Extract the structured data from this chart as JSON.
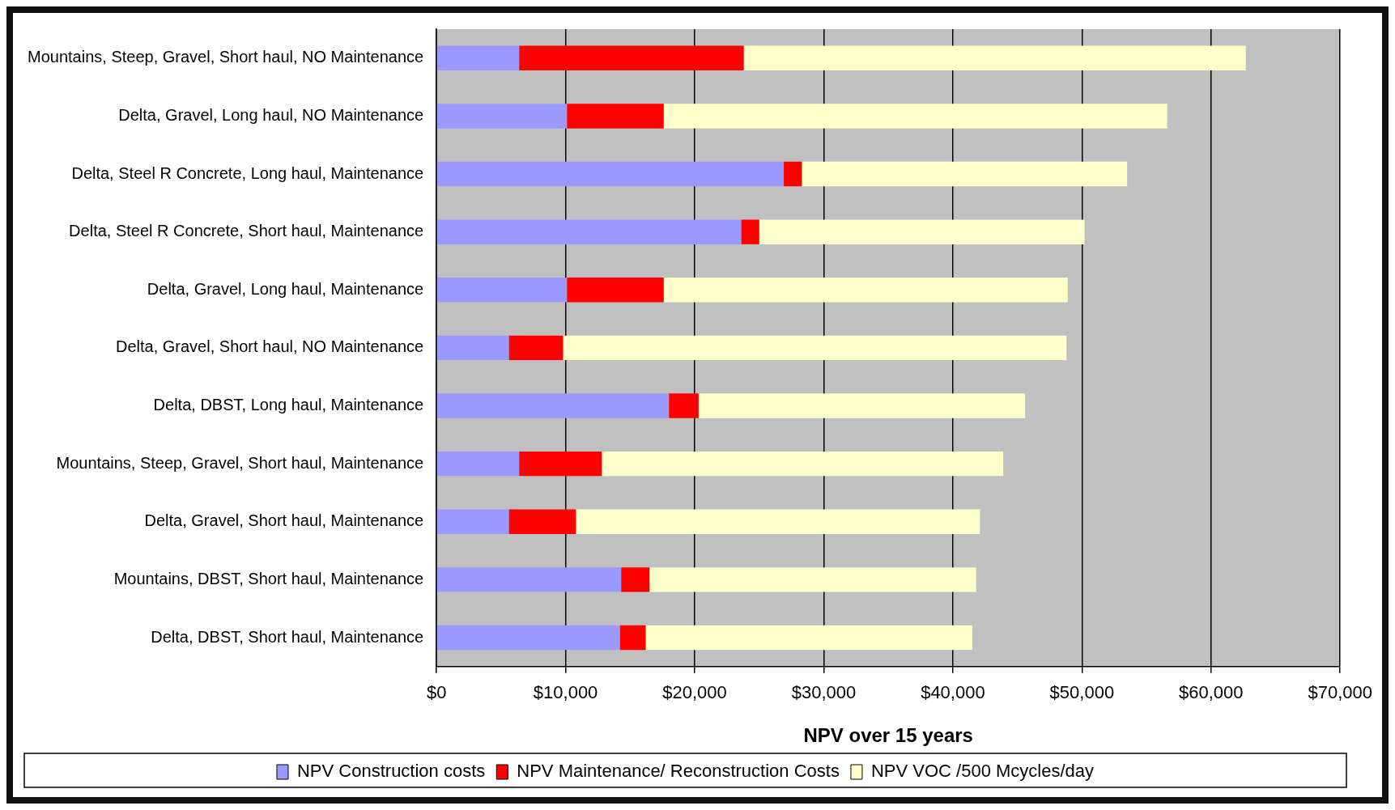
{
  "chart_data": {
    "type": "bar",
    "orientation": "horizontal",
    "stacked": true,
    "xlabel": "NPV over 15 years",
    "categories": [
      "Mountains, Steep, Gravel, Short haul, NO Maintenance",
      "Delta, Gravel, Long haul, NO Maintenance",
      "Delta, Steel R Concrete, Long haul, Maintenance",
      "Delta, Steel R Concrete, Short haul, Maintenance",
      "Delta, Gravel, Long haul, Maintenance",
      "Delta, Gravel, Short haul, NO Maintenance",
      "Delta, DBST, Long haul, Maintenance",
      "Mountains, Steep, Gravel, Short haul, Maintenance",
      "Delta, Gravel, Short haul, Maintenance",
      "Mountains, DBST, Short haul, Maintenance",
      "Delta, DBST, Short haul, Maintenance"
    ],
    "series": [
      {
        "name": "NPV Construction costs",
        "color": "#9999ff",
        "values": [
          6400,
          10100,
          26900,
          23600,
          10100,
          5600,
          18000,
          6400,
          5600,
          14300,
          14200
        ]
      },
      {
        "name": "NPV Maintenance/ Reconstruction Costs",
        "color": "#ff0000",
        "values": [
          17400,
          7500,
          1400,
          1400,
          7500,
          4200,
          2300,
          6400,
          5200,
          2200,
          2000
        ]
      },
      {
        "name": "NPV VOC /500 Mcycles/day",
        "color": "#ffffcc",
        "values": [
          38900,
          39000,
          25200,
          25200,
          31300,
          39000,
          25300,
          31100,
          31300,
          25300,
          25300
        ]
      }
    ],
    "xlim": [
      0,
      70000
    ],
    "xticks": [
      {
        "value": 0,
        "label": "$0"
      },
      {
        "value": 10000,
        "label": "$10,000"
      },
      {
        "value": 20000,
        "label": "$20,000"
      },
      {
        "value": 30000,
        "label": "$30,000"
      },
      {
        "value": 40000,
        "label": "$40,000"
      },
      {
        "value": 50000,
        "label": "$50,000"
      },
      {
        "value": 60000,
        "label": "$60,000"
      },
      {
        "value": 70000,
        "label": "$70,000"
      }
    ],
    "grid": "x",
    "legend": "bottom"
  }
}
